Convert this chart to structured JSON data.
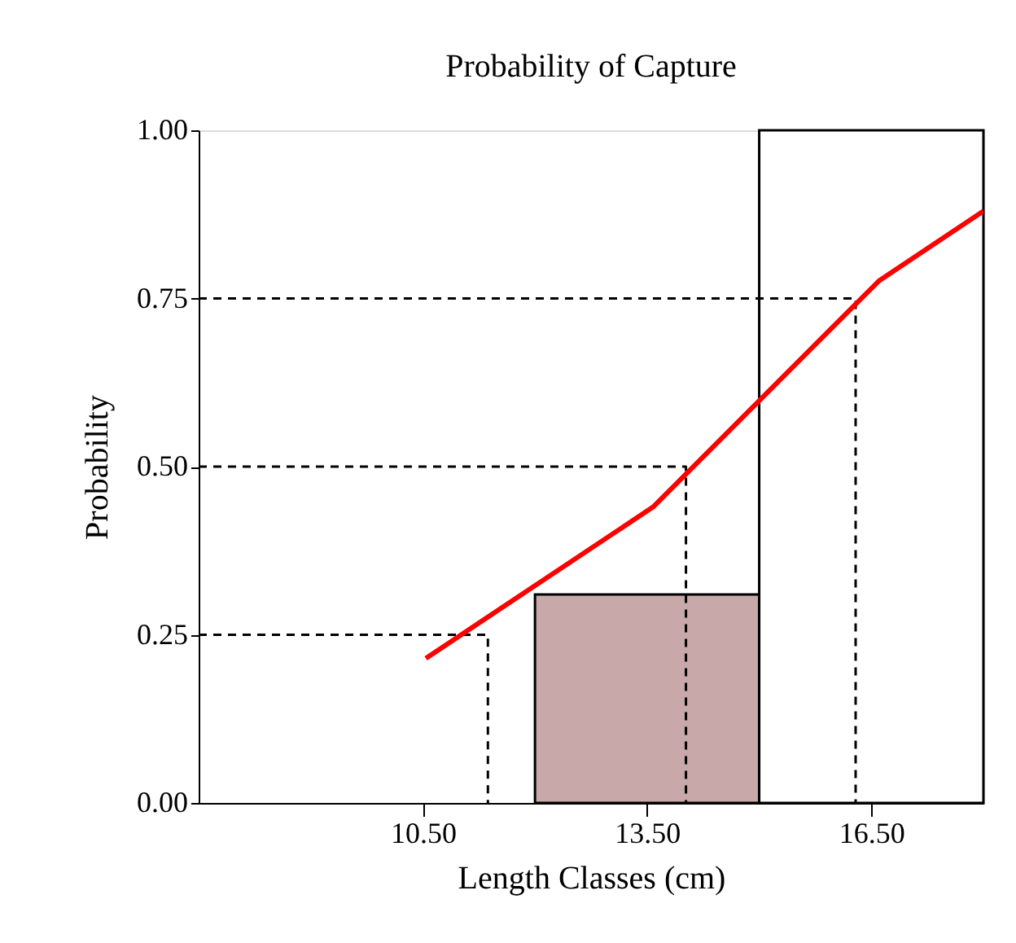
{
  "chart_data": {
    "type": "histogram",
    "title": "Probability of Capture",
    "xlabel": "Length Classes (cm)",
    "ylabel": "Probability",
    "bins": [
      12.0,
      15.0,
      18.0
    ],
    "values": [
      0.31,
      1.0
    ],
    "colors": [
      "#c8a8a8",
      "#ffffff"
    ],
    "series": [
      {
        "type": "line",
        "color": "#ff0000",
        "line_style": "solid",
        "x": [
          10.54,
          13.58,
          16.6,
          18.0
        ],
        "values": [
          0.215,
          0.44,
          0.776,
          0.88
        ]
      },
      {
        "type": "line",
        "color": "#000000",
        "line_style": "dashed",
        "x": [
          7.5,
          11.37,
          11.37
        ],
        "values": [
          0.25,
          0.25,
          0
        ]
      },
      {
        "type": "line",
        "color": "#000000",
        "line_style": "dashed",
        "x": [
          7.5,
          14.02,
          14.02
        ],
        "values": [
          0.5,
          0.5,
          0
        ]
      },
      {
        "type": "line",
        "color": "#000000",
        "line_style": "dashed",
        "x": [
          7.5,
          16.29,
          16.29
        ],
        "values": [
          0.75,
          0.75,
          0
        ]
      }
    ],
    "xlim": [
      7.5,
      18.0
    ],
    "ylim": [
      0,
      1.0
    ],
    "xticks": [
      {
        "value": 10.5,
        "label": "10.50"
      },
      {
        "value": 13.5,
        "label": "13.50"
      },
      {
        "value": 16.5,
        "label": "16.50"
      }
    ],
    "yticks": [
      {
        "value": 0,
        "label": "0.00"
      },
      {
        "value": 0.25,
        "label": "0.25"
      },
      {
        "value": 0.5,
        "label": "0.50"
      },
      {
        "value": 0.75,
        "label": "0.75"
      },
      {
        "value": 1.0,
        "label": "1.00"
      }
    ],
    "grid": false
  }
}
